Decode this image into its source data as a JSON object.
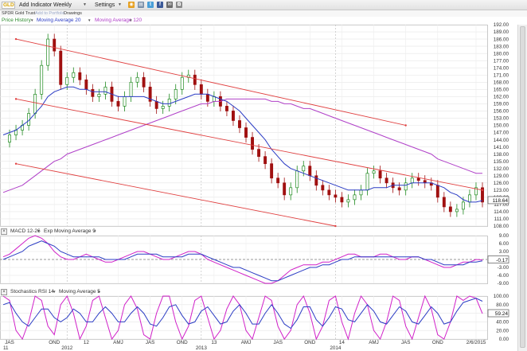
{
  "toolbar": {
    "symbol": "GLD",
    "add_indicator": "Add Indicator",
    "period": "Weekly",
    "settings": "Settings"
  },
  "subbar": {
    "security_name": "SPDR Gold Trust",
    "add_to_portfolio": "Add to Portfolio",
    "drawings": "Drawings"
  },
  "price_panel": {
    "legend": [
      "Price History",
      "Moving Average 20",
      "Moving Average 120"
    ],
    "legend_colors": [
      "#2e8b2e",
      "#2b3cc4",
      "#b040c8"
    ],
    "last_price_label": "118.64",
    "y_ticks": [
      "192.00",
      "189.00",
      "186.00",
      "183.00",
      "180.00",
      "177.00",
      "174.00",
      "171.00",
      "168.00",
      "165.00",
      "162.00",
      "159.00",
      "156.00",
      "153.00",
      "150.00",
      "147.00",
      "144.00",
      "141.00",
      "138.00",
      "135.00",
      "132.00",
      "129.00",
      "126.00",
      "123.00",
      "120.00",
      "117.00",
      "114.00",
      "111.00",
      "108.00"
    ]
  },
  "macd_panel": {
    "legend": [
      "MACD 12-26",
      "Exp Moving Average 9"
    ],
    "legend_colors": [
      "#d020c8",
      "#2b3cc4"
    ],
    "value_label": "-0.17",
    "y_ticks": [
      "9.00",
      "6.00",
      "3.00",
      "-3.00",
      "-6.00",
      "-9.00"
    ]
  },
  "stoch_panel": {
    "legend": [
      "Stochastics RSI 14",
      "Moving Average 5"
    ],
    "legend_colors": [
      "#d020c8",
      "#2b3cc4"
    ],
    "value_label": "59.24",
    "y_ticks": [
      "100.00",
      "80.00",
      "60.00",
      "40.00",
      "20.00",
      "0.00"
    ]
  },
  "x_axis": {
    "labels": [
      "JAS",
      "OND",
      "12",
      "AMJ",
      "JAS",
      "OND",
      "13",
      "AMJ",
      "JAS",
      "OND",
      "14",
      "AMJ",
      "JAS",
      "OND",
      "2/6/2015"
    ],
    "sublabels": [
      "11",
      "2012",
      "2013",
      "2014"
    ]
  },
  "chart_data": [
    {
      "type": "line",
      "title": "",
      "series": [
        {
          "name": "Price History",
          "values": [
            143,
            146,
            148,
            150,
            155,
            163,
            175,
            186,
            181,
            167,
            170,
            172,
            169,
            165,
            162,
            163,
            166,
            160,
            158,
            162,
            168,
            170,
            166,
            160,
            157,
            158,
            161,
            165,
            170,
            171,
            167,
            163,
            160,
            162,
            158,
            156,
            152,
            149,
            145,
            140,
            137,
            134,
            128,
            126,
            121,
            124,
            131,
            133,
            129,
            125,
            123,
            121,
            120,
            118,
            119,
            121,
            123,
            130,
            131,
            128,
            126,
            124,
            123,
            126,
            128,
            127,
            126,
            125,
            120,
            116,
            114,
            115,
            118,
            121,
            124,
            118
          ]
        },
        {
          "name": "Moving Average 20",
          "values": [
            146,
            147,
            148,
            150,
            152,
            155,
            158,
            162,
            164,
            165,
            166,
            166,
            165,
            165,
            164,
            164,
            164,
            163,
            162,
            162,
            162,
            162,
            162,
            161,
            160,
            159,
            159,
            160,
            161,
            162,
            163,
            163,
            163,
            162,
            161,
            160,
            158,
            156,
            153,
            150,
            147,
            144,
            140,
            137,
            134,
            132,
            131,
            130,
            129,
            128,
            127,
            126,
            125,
            124,
            123,
            123,
            123,
            123,
            124,
            124,
            124,
            125,
            125,
            125,
            126,
            126,
            126,
            126,
            125,
            124,
            122,
            121,
            119,
            118,
            118,
            118.64
          ]
        },
        {
          "name": "Moving Average 120",
          "values": [
            122,
            123,
            124,
            125,
            127,
            129,
            131,
            133,
            135,
            136,
            138,
            139,
            140,
            141,
            142,
            143,
            144,
            145,
            146,
            147,
            148,
            149,
            150,
            151,
            152,
            153,
            154,
            155,
            156,
            157,
            158,
            159,
            159,
            160,
            160,
            161,
            161,
            161,
            161,
            161,
            161,
            161,
            160,
            160,
            159,
            159,
            158,
            157,
            157,
            156,
            155,
            154,
            153,
            152,
            151,
            150,
            149,
            148,
            147,
            146,
            145,
            144,
            143,
            142,
            141,
            140,
            139,
            138,
            136,
            135,
            134,
            133,
            132,
            131,
            130,
            130
          ]
        }
      ],
      "trendlines": [
        {
          "from": [
            2,
            186
          ],
          "to": [
            63,
            150
          ]
        },
        {
          "from": [
            2,
            161
          ],
          "to": [
            75,
            123
          ]
        },
        {
          "from": [
            2,
            134
          ],
          "to": [
            52,
            108
          ]
        }
      ],
      "ylim": [
        108,
        192
      ]
    },
    {
      "type": "line",
      "series": [
        {
          "name": "MACD 12-26",
          "values": [
            1,
            2,
            4,
            6,
            8,
            9,
            8,
            6,
            3,
            1,
            0,
            0,
            1,
            2,
            1,
            0,
            -1,
            -1,
            0,
            1,
            2,
            3,
            3,
            2,
            1,
            0,
            0,
            1,
            2,
            3,
            3,
            2,
            0,
            -1,
            -2,
            -3,
            -4,
            -5,
            -6,
            -7,
            -8,
            -9,
            -9,
            -8,
            -6,
            -4,
            -3,
            -2,
            -2,
            -2,
            -1,
            -1,
            0,
            1,
            2,
            2,
            1,
            1,
            1,
            2,
            2,
            1,
            0,
            0,
            1,
            1,
            0,
            -1,
            -2,
            -3,
            -3,
            -2,
            -1,
            -1,
            0,
            -0.17
          ]
        },
        {
          "name": "Exp Moving Average 9",
          "values": [
            0,
            1,
            2,
            3,
            5,
            6,
            7,
            6,
            5,
            3,
            2,
            1,
            1,
            1,
            1,
            1,
            0,
            0,
            0,
            0,
            1,
            2,
            2,
            2,
            2,
            1,
            1,
            1,
            1,
            2,
            2,
            2,
            1,
            0,
            -1,
            -2,
            -3,
            -3,
            -4,
            -5,
            -6,
            -7,
            -8,
            -8,
            -7,
            -6,
            -5,
            -4,
            -3,
            -3,
            -2,
            -2,
            -1,
            0,
            0,
            1,
            1,
            1,
            1,
            1,
            1,
            1,
            1,
            1,
            1,
            1,
            0,
            0,
            -1,
            -2,
            -2,
            -2,
            -2,
            -1,
            -1,
            -0.5
          ]
        }
      ],
      "ylim": [
        -9,
        9
      ]
    },
    {
      "type": "line",
      "series": [
        {
          "name": "Stochastics RSI 14",
          "values": [
            100,
            90,
            20,
            0,
            40,
            100,
            90,
            30,
            10,
            80,
            100,
            60,
            0,
            30,
            90,
            100,
            50,
            0,
            20,
            80,
            100,
            70,
            10,
            0,
            60,
            100,
            100,
            40,
            0,
            30,
            90,
            100,
            50,
            0,
            20,
            70,
            100,
            80,
            20,
            0,
            50,
            100,
            90,
            30,
            0,
            20,
            80,
            100,
            60,
            0,
            30,
            90,
            100,
            40,
            0,
            60,
            100,
            80,
            20,
            0,
            40,
            100,
            90,
            30,
            0,
            50,
            100,
            70,
            10,
            0,
            40,
            100,
            90,
            100,
            95,
            59.24
          ]
        },
        {
          "name": "Moving Average 5",
          "values": [
            80,
            85,
            60,
            40,
            30,
            50,
            70,
            70,
            50,
            40,
            50,
            70,
            60,
            40,
            40,
            60,
            75,
            60,
            40,
            40,
            60,
            75,
            60,
            35,
            30,
            50,
            75,
            80,
            55,
            35,
            40,
            65,
            75,
            55,
            35,
            40,
            65,
            80,
            60,
            35,
            35,
            60,
            80,
            60,
            35,
            25,
            45,
            75,
            75,
            45,
            30,
            50,
            75,
            70,
            45,
            40,
            60,
            80,
            65,
            40,
            35,
            55,
            75,
            65,
            40,
            35,
            55,
            75,
            60,
            35,
            40,
            65,
            85,
            90,
            95,
            88
          ]
        }
      ],
      "ylim": [
        0,
        100
      ]
    }
  ]
}
